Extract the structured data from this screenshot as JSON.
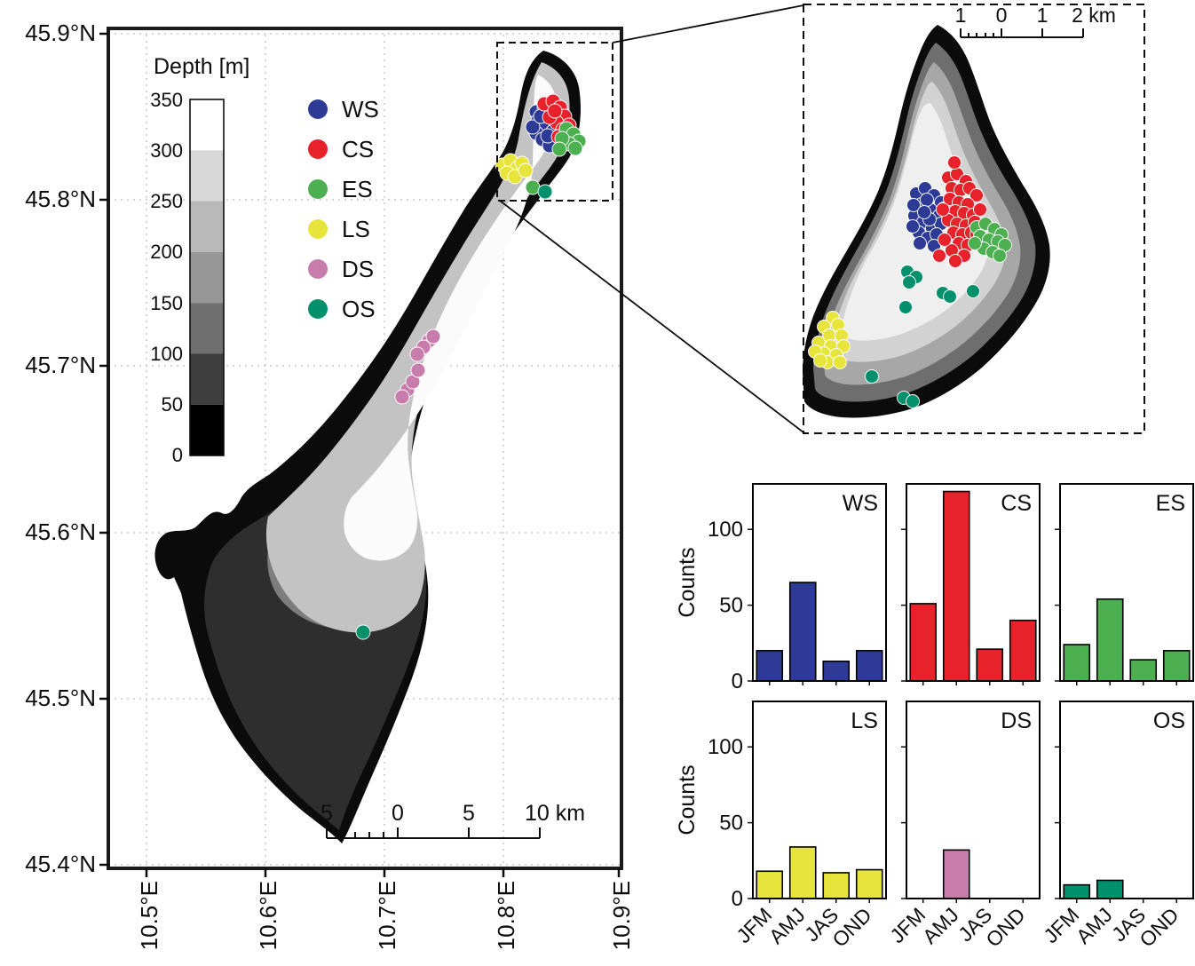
{
  "map": {
    "lat_labels": [
      "45.9°N",
      "45.8°N",
      "45.7°N",
      "45.6°N",
      "45.5°N",
      "45.4°N"
    ],
    "lon_labels": [
      "10.5°E",
      "10.6°E",
      "10.7°E",
      "10.8°E",
      "10.9°E"
    ],
    "colorbar": {
      "title": "Depth [m]",
      "tick_labels": [
        "350",
        "300",
        "250",
        "200",
        "150",
        "100",
        "50",
        "0"
      ],
      "band_colors": [
        "#ffffff",
        "#d8d8d8",
        "#b9b9b9",
        "#969696",
        "#6f6f6f",
        "#3e3e3e",
        "#000000"
      ]
    },
    "legend": {
      "items": [
        {
          "label": "WS",
          "color": "#2d3a96"
        },
        {
          "label": "CS",
          "color": "#e8222a"
        },
        {
          "label": "ES",
          "color": "#4cb050"
        },
        {
          "label": "LS",
          "color": "#e7e53c"
        },
        {
          "label": "DS",
          "color": "#c77cab"
        },
        {
          "label": "OS",
          "color": "#00916c"
        }
      ]
    },
    "scalebar": {
      "labels": [
        "5",
        "0",
        "5",
        "10 km"
      ]
    },
    "stations": {
      "WS": [
        [
          604,
          126
        ],
        [
          613,
          121
        ],
        [
          621,
          129
        ],
        [
          606,
          136
        ],
        [
          615,
          141
        ],
        [
          623,
          148
        ],
        [
          604,
          150
        ],
        [
          611,
          157
        ],
        [
          619,
          164
        ],
        [
          600,
          143
        ],
        [
          609,
          131
        ],
        [
          617,
          153
        ]
      ],
      "CS": [
        [
          613,
          117
        ],
        [
          623,
          114
        ],
        [
          631,
          121
        ],
        [
          636,
          131
        ],
        [
          627,
          138
        ],
        [
          634,
          146
        ],
        [
          619,
          132
        ],
        [
          629,
          154
        ],
        [
          637,
          159
        ],
        [
          641,
          141
        ],
        [
          625,
          125
        ]
      ],
      "ES": [
        [
          638,
          145
        ],
        [
          646,
          151
        ],
        [
          652,
          159
        ],
        [
          641,
          162
        ],
        [
          633,
          156
        ],
        [
          648,
          167
        ],
        [
          630,
          168
        ],
        [
          600,
          211
        ]
      ],
      "LS": [
        [
          566,
          186
        ],
        [
          575,
          181
        ],
        [
          583,
          189
        ],
        [
          571,
          195
        ],
        [
          580,
          199
        ],
        [
          588,
          184
        ],
        [
          592,
          192
        ]
      ],
      "DS": [
        [
          483,
          384
        ],
        [
          477,
          391
        ],
        [
          470,
          399
        ],
        [
          488,
          379
        ],
        [
          459,
          439
        ],
        [
          453,
          447
        ],
        [
          465,
          430
        ],
        [
          471,
          417
        ]
      ],
      "OS": [
        [
          614,
          216
        ],
        [
          409,
          712
        ]
      ]
    }
  },
  "inset": {
    "scalebar": {
      "labels": [
        "1",
        "0",
        "1",
        "2 km"
      ]
    },
    "stations": {
      "WS": [
        [
          1032,
          218
        ],
        [
          1042,
          212
        ],
        [
          1052,
          220
        ],
        [
          1060,
          228
        ],
        [
          1038,
          230
        ],
        [
          1048,
          236
        ],
        [
          1058,
          243
        ],
        [
          1030,
          243
        ],
        [
          1040,
          250
        ],
        [
          1050,
          257
        ],
        [
          1060,
          252
        ],
        [
          1035,
          262
        ],
        [
          1045,
          268
        ],
        [
          1055,
          264
        ],
        [
          1028,
          255
        ],
        [
          1063,
          235
        ],
        [
          1044,
          225
        ],
        [
          1036,
          274
        ],
        [
          1052,
          277
        ],
        [
          1029,
          231
        ],
        [
          1047,
          247
        ],
        [
          1041,
          239
        ]
      ],
      "CS": [
        [
          1068,
          200
        ],
        [
          1078,
          196
        ],
        [
          1088,
          204
        ],
        [
          1072,
          212
        ],
        [
          1082,
          214
        ],
        [
          1092,
          212
        ],
        [
          1100,
          220
        ],
        [
          1070,
          224
        ],
        [
          1080,
          228
        ],
        [
          1090,
          230
        ],
        [
          1076,
          238
        ],
        [
          1086,
          240
        ],
        [
          1096,
          242
        ],
        [
          1068,
          248
        ],
        [
          1078,
          252
        ],
        [
          1088,
          254
        ],
        [
          1098,
          250
        ],
        [
          1074,
          262
        ],
        [
          1084,
          264
        ],
        [
          1094,
          262
        ],
        [
          1080,
          274
        ],
        [
          1090,
          276
        ],
        [
          1072,
          282
        ],
        [
          1086,
          288
        ],
        [
          1064,
          270
        ],
        [
          1100,
          264
        ],
        [
          1104,
          236
        ],
        [
          1062,
          236
        ],
        [
          1076,
          294
        ],
        [
          1058,
          288
        ],
        [
          1075,
          183
        ]
      ],
      "ES": [
        [
          1100,
          256
        ],
        [
          1110,
          252
        ],
        [
          1120,
          258
        ],
        [
          1128,
          264
        ],
        [
          1104,
          266
        ],
        [
          1114,
          270
        ],
        [
          1124,
          272
        ],
        [
          1132,
          276
        ],
        [
          1108,
          280
        ],
        [
          1118,
          284
        ],
        [
          1098,
          274
        ],
        [
          1126,
          288
        ]
      ],
      "LS": [
        [
          938,
          358
        ],
        [
          928,
          368
        ],
        [
          944,
          366
        ],
        [
          934,
          378
        ],
        [
          948,
          378
        ],
        [
          922,
          386
        ],
        [
          936,
          390
        ],
        [
          950,
          390
        ],
        [
          928,
          398
        ],
        [
          942,
          400
        ],
        [
          918,
          396
        ],
        [
          932,
          408
        ],
        [
          946,
          408
        ],
        [
          924,
          406
        ]
      ],
      "OS": [
        [
          1022,
          306
        ],
        [
          1032,
          312
        ],
        [
          1024,
          318
        ],
        [
          1062,
          330
        ],
        [
          1070,
          334
        ],
        [
          1096,
          328
        ],
        [
          1020,
          346
        ],
        [
          982,
          424
        ],
        [
          1018,
          448
        ],
        [
          1028,
          452
        ]
      ]
    }
  },
  "chart_data": {
    "type": "bar",
    "categories": [
      "JFM",
      "AMJ",
      "JAS",
      "OND"
    ],
    "ylabel": "Counts",
    "ylim": [
      0,
      130
    ],
    "yticks": [
      0,
      50,
      100
    ],
    "legend_position": "none",
    "grid": false,
    "series": [
      {
        "name": "WS",
        "color": "#2d3a96",
        "values": [
          20,
          65,
          13,
          20
        ]
      },
      {
        "name": "CS",
        "color": "#e8222a",
        "values": [
          51,
          125,
          21,
          40
        ]
      },
      {
        "name": "ES",
        "color": "#4cb050",
        "values": [
          24,
          54,
          14,
          20
        ]
      },
      {
        "name": "LS",
        "color": "#e7e53c",
        "values": [
          18,
          34,
          17,
          19
        ]
      },
      {
        "name": "DS",
        "color": "#c77cab",
        "values": [
          0,
          32,
          0,
          0
        ]
      },
      {
        "name": "OS",
        "color": "#00916c",
        "values": [
          9,
          12,
          0,
          0
        ]
      }
    ]
  }
}
